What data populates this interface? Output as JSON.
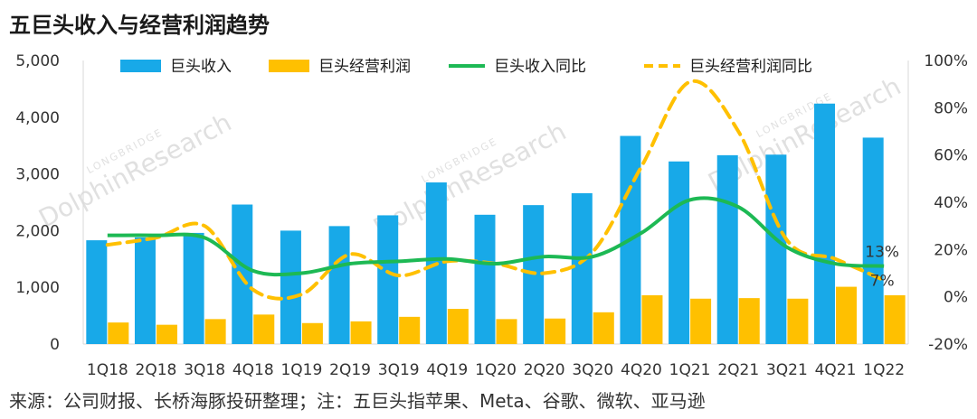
{
  "title": "五巨头收入与经营利润趋势",
  "source": "来源：公司财报、长桥海豚投研整理；注：五巨头指苹果、Meta、谷歌、微软、亚马逊",
  "watermark": {
    "small": "LONGBRIDGE",
    "large": "DolphinResearch"
  },
  "colors": {
    "revenue": "#18a9e8",
    "profit": "#ffc000",
    "revenue_yoy": "#1db954",
    "profit_yoy": "#ffc000",
    "axis": "#d9d9d9",
    "watermark": "#c8c8c8"
  },
  "chart_data": {
    "type": "bar",
    "categories": [
      "1Q18",
      "2Q18",
      "3Q18",
      "4Q18",
      "1Q19",
      "2Q19",
      "3Q19",
      "4Q19",
      "1Q20",
      "2Q20",
      "3Q20",
      "4Q20",
      "1Q21",
      "2Q21",
      "3Q21",
      "4Q21",
      "1Q22"
    ],
    "series": [
      {
        "name": "巨头收入",
        "type": "bar",
        "axis": "left",
        "values": [
          1830,
          1880,
          1960,
          2460,
          2000,
          2080,
          2270,
          2850,
          2280,
          2450,
          2660,
          3670,
          3220,
          3330,
          3340,
          4240,
          3640
        ]
      },
      {
        "name": "巨头经营利润",
        "type": "bar",
        "axis": "left",
        "values": [
          380,
          340,
          440,
          520,
          370,
          400,
          480,
          620,
          440,
          450,
          560,
          860,
          800,
          810,
          800,
          1010,
          860
        ]
      },
      {
        "name": "巨头收入同比",
        "type": "line",
        "style": "solid",
        "axis": "right",
        "values": [
          26,
          26,
          25,
          11,
          10,
          14,
          15,
          16,
          14,
          17,
          17,
          27,
          41,
          38,
          21,
          14,
          13
        ]
      },
      {
        "name": "巨头经营利润同比",
        "type": "line",
        "style": "dashed",
        "axis": "right",
        "values": [
          22,
          25,
          30,
          3,
          1,
          18,
          9,
          15,
          14,
          10,
          19,
          55,
          91,
          70,
          24,
          16,
          7
        ]
      }
    ],
    "y_left": {
      "lim": [
        0,
        5000
      ],
      "ticks": [
        "0",
        "1,000",
        "2,000",
        "3,000",
        "4,000",
        "5,000"
      ]
    },
    "y_right": {
      "lim": [
        -20,
        100
      ],
      "ticks": [
        "-20%",
        "0%",
        "20%",
        "40%",
        "60%",
        "80%",
        "100%"
      ]
    },
    "annotations": [
      {
        "text": "13%",
        "series": "巨头收入同比",
        "index": 16
      },
      {
        "text": "7%",
        "series": "巨头经营利润同比",
        "index": 16
      }
    ],
    "legend": "top",
    "grid": false
  }
}
